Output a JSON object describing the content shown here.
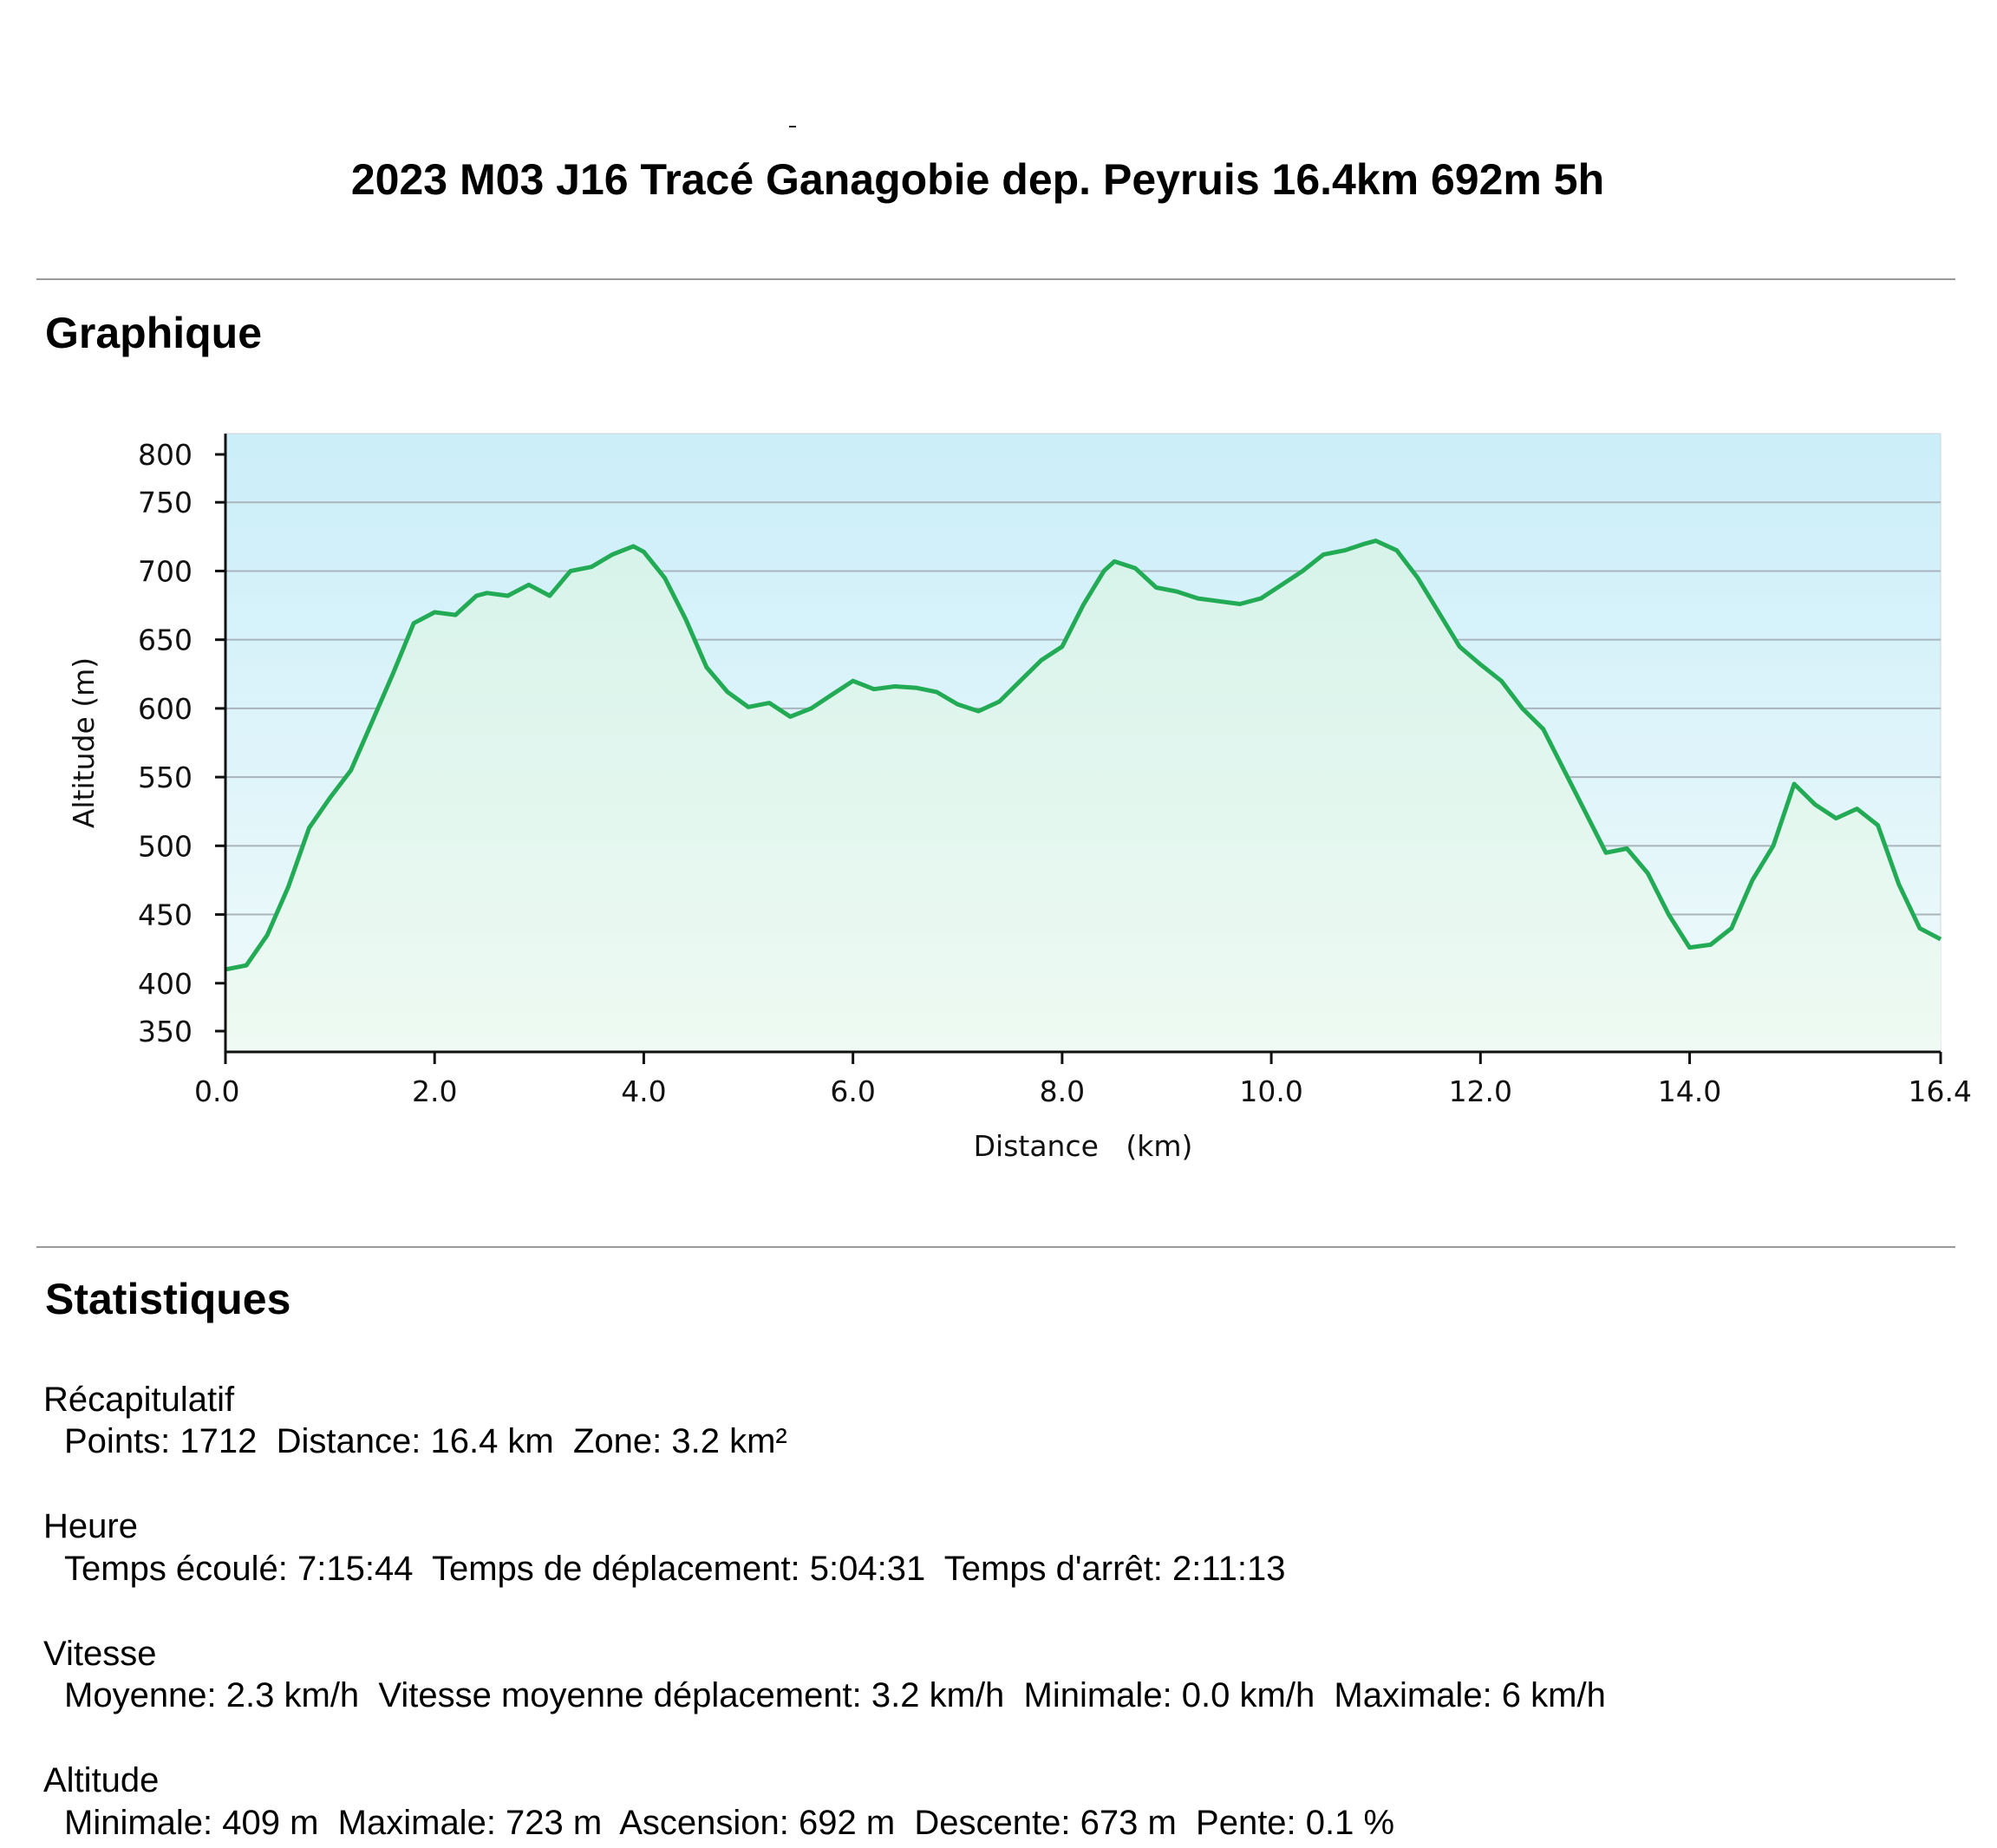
{
  "page": {
    "title": "2023 M03 J16 Tracé Ganagobie dep. Peyruis 16.4km 692m 5h",
    "graph_heading": "Graphique",
    "stats_heading": "Statistiques"
  },
  "colors": {
    "line": "#22aa55",
    "grid": "#a9b4bd",
    "sky_top": "#cbeef9",
    "sky_bottom": "#f0fafb",
    "fill_top": "#d7f3ea",
    "fill_bottom": "#eefaf3"
  },
  "chart_data": {
    "type": "area",
    "title": "",
    "xlabel": "Distance   (km)",
    "ylabel": "Altitude (m)",
    "xlim": [
      0,
      16.4
    ],
    "ylim": [
      350,
      800
    ],
    "x_ticks": [
      "0.0",
      "2.0",
      "4.0",
      "6.0",
      "8.0",
      "10.0",
      "12.0",
      "14.0",
      "16.4"
    ],
    "y_ticks": [
      "800",
      "750",
      "700",
      "650",
      "600",
      "550",
      "500",
      "450",
      "400",
      "350"
    ],
    "grid": true,
    "series": [
      {
        "x": [
          0,
          0.2,
          0.4,
          0.6,
          0.8,
          1.0,
          1.2,
          1.4,
          1.6,
          1.8,
          2.0,
          2.2,
          2.4,
          2.5,
          2.7,
          2.9,
          3.1,
          3.3,
          3.5,
          3.7,
          3.9,
          4.0,
          4.2,
          4.4,
          4.6,
          4.8,
          5.0,
          5.2,
          5.4,
          5.6,
          5.8,
          6.0,
          6.2,
          6.4,
          6.6,
          6.8,
          7.0,
          7.2,
          7.4,
          7.6,
          7.8,
          8.0,
          8.2,
          8.4,
          8.5,
          8.7,
          8.9,
          9.1,
          9.3,
          9.5,
          9.7,
          9.9,
          10.1,
          10.3,
          10.5,
          10.7,
          10.9,
          11.0,
          11.2,
          11.4,
          11.6,
          11.8,
          12.0,
          12.2,
          12.4,
          12.6,
          12.8,
          13.0,
          13.2,
          13.4,
          13.6,
          13.8,
          14.0,
          14.2,
          14.4,
          14.6,
          14.8,
          15.0,
          15.2,
          15.4,
          15.6,
          15.8,
          16.0,
          16.2,
          16.4
        ],
        "y": [
          410,
          413,
          435,
          470,
          513,
          535,
          555,
          590,
          625,
          662,
          670,
          668,
          682,
          684,
          682,
          690,
          682,
          700,
          703,
          712,
          718,
          714,
          695,
          665,
          630,
          612,
          601,
          604,
          594,
          600,
          610,
          620,
          614,
          616,
          615,
          612,
          603,
          598,
          605,
          620,
          635,
          645,
          675,
          700,
          707,
          702,
          688,
          685,
          680,
          678,
          676,
          680,
          690,
          700,
          712,
          715,
          720,
          722,
          715,
          695,
          670,
          645,
          632,
          620,
          600,
          585,
          555,
          525,
          495,
          498,
          480,
          450,
          426,
          428,
          440,
          475,
          500,
          545,
          530,
          520,
          527,
          515,
          472,
          440,
          432
        ]
      }
    ]
  },
  "stats": {
    "summary_head": "Récapitulatif",
    "summary_line": "Points: 1712  Distance: 16.4 km  Zone: 3.2 km²",
    "time_head": "Heure",
    "time_line": "Temps écoulé: 7:15:44  Temps de déplacement: 5:04:31  Temps d'arrêt: 2:11:13",
    "speed_head": "Vitesse",
    "speed_line": "Moyenne: 2.3 km/h  Vitesse moyenne déplacement: 3.2 km/h  Minimale: 0.0 km/h  Maximale: 6 km/h",
    "alt_head": "Altitude",
    "alt_line": "Minimale: 409 m  Maximale: 723 m  Ascension: 692 m  Descente: 673 m  Pente: 0.1 %"
  }
}
